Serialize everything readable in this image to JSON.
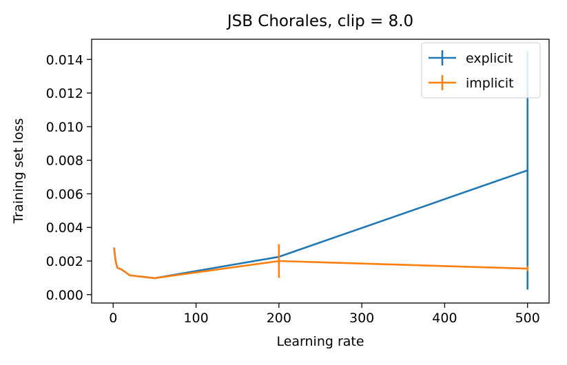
{
  "chart_data": {
    "type": "line",
    "title": "JSB Chorales, clip = 8.0",
    "xlabel": "Learning rate",
    "ylabel": "Training set loss",
    "xlim": [
      -26,
      526
    ],
    "ylim": [
      -0.0005,
      0.0152
    ],
    "x_ticks": [
      0,
      100,
      200,
      300,
      400,
      500
    ],
    "x_tick_labels": [
      "0",
      "100",
      "200",
      "300",
      "400",
      "500"
    ],
    "y_ticks": [
      0.0,
      0.002,
      0.004,
      0.006,
      0.008,
      0.01,
      0.012,
      0.014
    ],
    "y_tick_labels": [
      "0.000",
      "0.002",
      "0.004",
      "0.006",
      "0.008",
      "0.010",
      "0.012",
      "0.014"
    ],
    "legend_position": "top-right",
    "grid": false,
    "series": [
      {
        "name": "explicit",
        "color": "#1f77b4",
        "x": [
          1,
          3,
          5,
          10,
          20,
          50,
          200,
          500
        ],
        "y": [
          0.0028,
          0.002,
          0.0016,
          0.0015,
          0.00115,
          0.00098,
          0.00225,
          0.0074
        ],
        "err_low": [
          0,
          0,
          0,
          0,
          0,
          0,
          0,
          0.0003
        ],
        "err_high": [
          0,
          0,
          0,
          0,
          0,
          0,
          0,
          0.0145
        ]
      },
      {
        "name": "implicit",
        "color": "#ff7f0e",
        "x": [
          1,
          3,
          5,
          10,
          20,
          50,
          200,
          500
        ],
        "y": [
          0.0028,
          0.002,
          0.0016,
          0.0015,
          0.00115,
          0.00098,
          0.002,
          0.00155
        ],
        "err_low": [
          0,
          0,
          0,
          0,
          0,
          0,
          0.001,
          0.0014
        ],
        "err_high": [
          0,
          0,
          0,
          0,
          0,
          0,
          0.003,
          0.0017
        ]
      }
    ]
  }
}
